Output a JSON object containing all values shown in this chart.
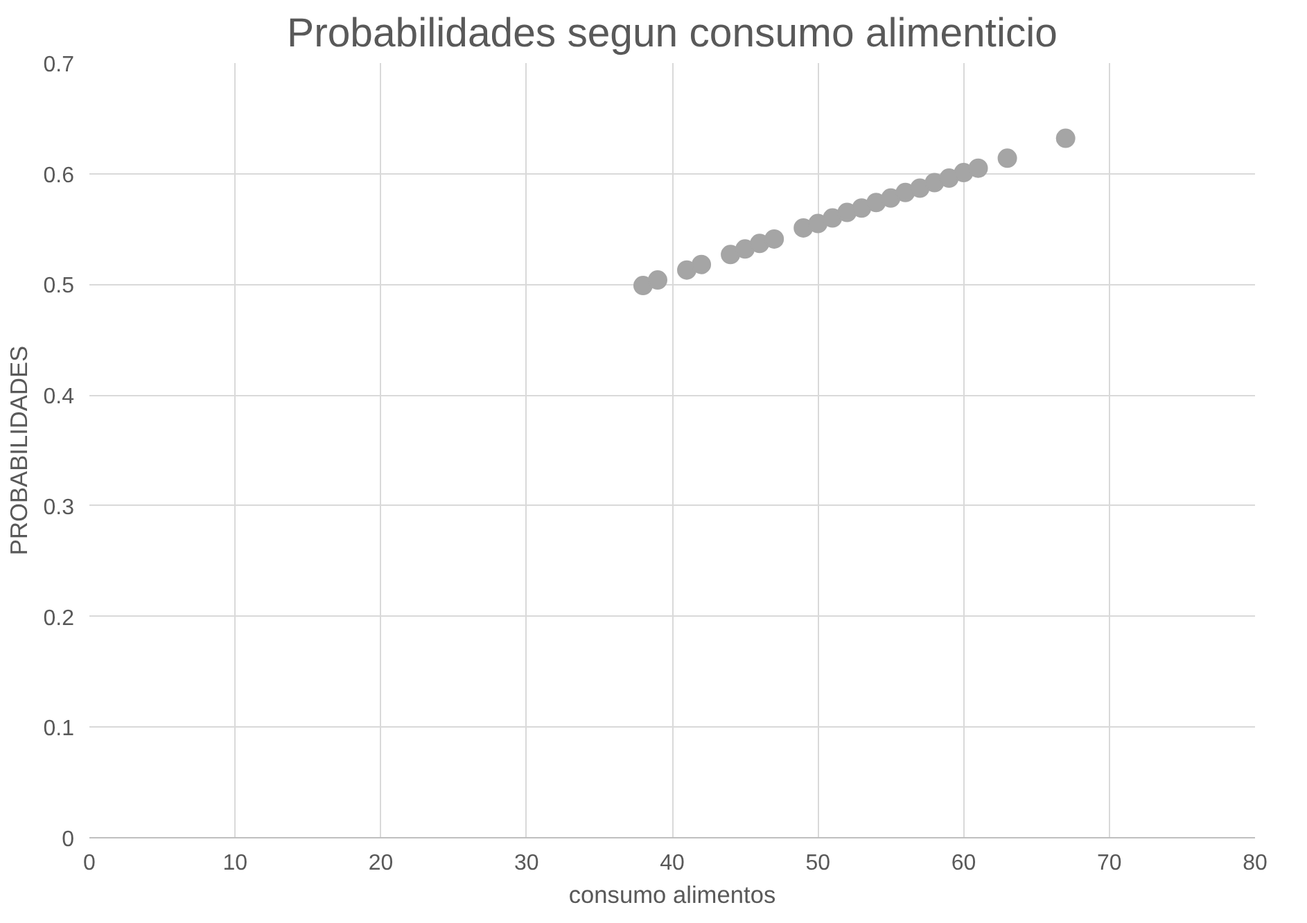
{
  "chart_data": {
    "type": "scatter",
    "title": "Probabilidades segun consumo alimenticio",
    "xlabel": "consumo alimentos",
    "ylabel": "PROBABILIDADES",
    "x": [
      38,
      39,
      41,
      42,
      44,
      45,
      46,
      47,
      49,
      50,
      51,
      52,
      53,
      54,
      55,
      56,
      57,
      58,
      59,
      60,
      61,
      63,
      67
    ],
    "series": [
      {
        "color": "#a5a5a5",
        "values": [
          0.499,
          0.504,
          0.513,
          0.518,
          0.527,
          0.532,
          0.537,
          0.541,
          0.551,
          0.555,
          0.56,
          0.565,
          0.569,
          0.574,
          0.578,
          0.583,
          0.587,
          0.592,
          0.596,
          0.601,
          0.605,
          0.614,
          0.632
        ]
      }
    ],
    "xlim": [
      0,
      80
    ],
    "xticks": [
      0,
      10,
      20,
      30,
      40,
      50,
      60,
      70,
      80
    ],
    "ylim": [
      0,
      0.7
    ],
    "yticks": [
      {
        "value": 0,
        "label": "0"
      },
      0.1,
      0.2,
      0.3,
      0.4,
      0.5,
      0.6,
      0.7
    ],
    "grid": true,
    "marker": "circle"
  }
}
